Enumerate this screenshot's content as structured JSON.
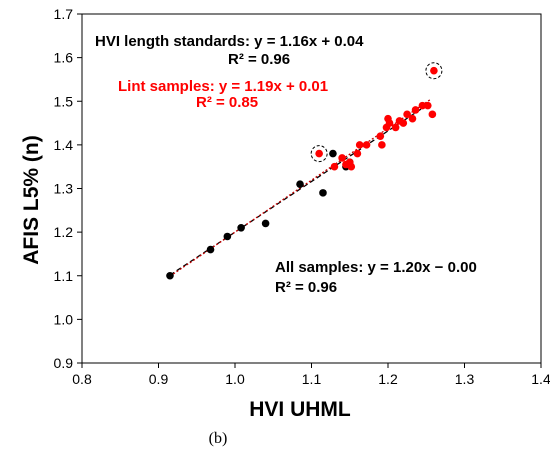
{
  "chart_data": {
    "type": "scatter",
    "xlabel": "HVI UHML",
    "ylabel": "AFIS L5% (n)",
    "xlim": [
      0.8,
      1.4
    ],
    "ylim": [
      0.9,
      1.7
    ],
    "x_ticks": [
      "0.8",
      "0.9",
      "1.0",
      "1.1",
      "1.2",
      "1.3",
      "1.4"
    ],
    "y_ticks": [
      "0.9",
      "1.0",
      "1.1",
      "1.2",
      "1.3",
      "1.4",
      "1.5",
      "1.6",
      "1.7"
    ],
    "grid": false,
    "series": [
      {
        "color": "#000000",
        "points": [
          {
            "x": 0.915,
            "y": 1.1
          },
          {
            "x": 0.968,
            "y": 1.16
          },
          {
            "x": 0.99,
            "y": 1.19
          },
          {
            "x": 1.008,
            "y": 1.21
          },
          {
            "x": 1.04,
            "y": 1.22
          },
          {
            "x": 1.085,
            "y": 1.31
          },
          {
            "x": 1.115,
            "y": 1.29
          },
          {
            "x": 1.128,
            "y": 1.38
          },
          {
            "x": 1.15,
            "y": 1.36
          },
          {
            "x": 1.145,
            "y": 1.35
          }
        ]
      },
      {
        "color": "#ff0000",
        "points": [
          {
            "x": 1.11,
            "y": 1.38
          },
          {
            "x": 1.13,
            "y": 1.35
          },
          {
            "x": 1.14,
            "y": 1.37
          },
          {
            "x": 1.145,
            "y": 1.355
          },
          {
            "x": 1.15,
            "y": 1.36
          },
          {
            "x": 1.152,
            "y": 1.35
          },
          {
            "x": 1.16,
            "y": 1.38
          },
          {
            "x": 1.163,
            "y": 1.4
          },
          {
            "x": 1.172,
            "y": 1.4
          },
          {
            "x": 1.19,
            "y": 1.42
          },
          {
            "x": 1.192,
            "y": 1.4
          },
          {
            "x": 1.198,
            "y": 1.44
          },
          {
            "x": 1.2,
            "y": 1.46
          },
          {
            "x": 1.202,
            "y": 1.45
          },
          {
            "x": 1.21,
            "y": 1.44
          },
          {
            "x": 1.215,
            "y": 1.455
          },
          {
            "x": 1.22,
            "y": 1.45
          },
          {
            "x": 1.225,
            "y": 1.47
          },
          {
            "x": 1.232,
            "y": 1.46
          },
          {
            "x": 1.236,
            "y": 1.48
          },
          {
            "x": 1.245,
            "y": 1.49
          },
          {
            "x": 1.252,
            "y": 1.49
          },
          {
            "x": 1.258,
            "y": 1.47
          },
          {
            "x": 1.26,
            "y": 1.57
          }
        ]
      }
    ],
    "highlighted_points": [
      {
        "x": 1.11,
        "y": 1.38
      },
      {
        "x": 1.26,
        "y": 1.57
      }
    ],
    "trendlines": [
      {
        "slope": 1.16,
        "intercept": 0.04,
        "x_range": [
          0.915,
          1.255
        ],
        "color": "#000000",
        "style": "dashed"
      },
      {
        "slope": 1.19,
        "intercept": 0.01,
        "x_range": [
          0.915,
          1.255
        ],
        "color": "#c00000",
        "style": "dotted"
      }
    ],
    "annotations": [
      {
        "text": "HVI length standards: y = 1.16x + 0.04",
        "color": "#000000"
      },
      {
        "text": "R² = 0.96",
        "color": "#000000"
      },
      {
        "text": "Lint samples: y = 1.19x + 0.01",
        "color": "#ff0000"
      },
      {
        "text": "R² = 0.85",
        "color": "#ff0000"
      },
      {
        "text": "All samples: y = 1.20x − 0.00",
        "color": "#000000"
      },
      {
        "text": "R² = 0.96",
        "color": "#000000"
      }
    ],
    "caption": "(b)"
  }
}
